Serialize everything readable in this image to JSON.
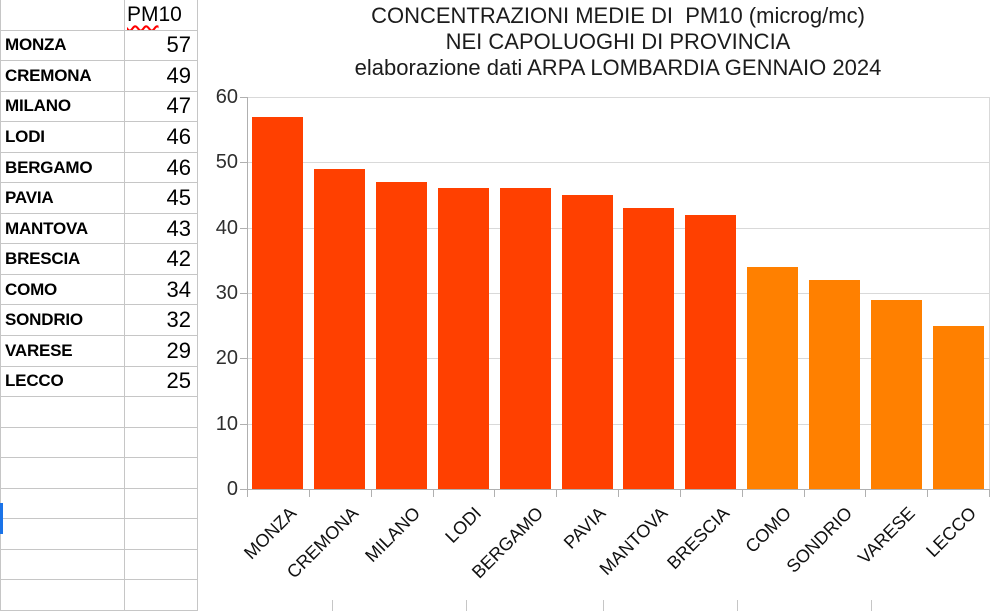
{
  "app": {
    "kind": "spreadsheet with embedded bar chart"
  },
  "table": {
    "header": {
      "full": "PM 10",
      "misspelled_part": "PM",
      "rest": " 10"
    },
    "rows": [
      {
        "name": "MONZA",
        "value": 57
      },
      {
        "name": "CREMONA",
        "value": 49
      },
      {
        "name": "MILANO",
        "value": 47
      },
      {
        "name": "LODI",
        "value": 46
      },
      {
        "name": "BERGAMO",
        "value": 46
      },
      {
        "name": "PAVIA",
        "value": 45
      },
      {
        "name": "MANTOVA",
        "value": 43
      },
      {
        "name": "BRESCIA",
        "value": 42
      },
      {
        "name": "COMO",
        "value": 34
      },
      {
        "name": "SONDRIO",
        "value": 32
      },
      {
        "name": "VARESE",
        "value": 29
      },
      {
        "name": "LECCO",
        "value": 25
      }
    ]
  },
  "chart_data": {
    "type": "bar",
    "title_lines": [
      "CONCENTRAZIONI MEDIE DI  PM10 (microg/mc)",
      "NEI CAPOLUOGHI DI PROVINCIA",
      "elaborazione dati ARPA LOMBARDIA GENNAIO 2024"
    ],
    "categories": [
      "MONZA",
      "CREMONA",
      "MILANO",
      "LODI",
      "BERGAMO",
      "PAVIA",
      "MANTOVA",
      "BRESCIA",
      "COMO",
      "SONDRIO",
      "VARESE",
      "LECCO"
    ],
    "series": [
      {
        "name": "PM 10",
        "values": [
          57,
          49,
          47,
          46,
          46,
          45,
          43,
          42,
          34,
          32,
          29,
          25
        ]
      }
    ],
    "values": [
      57,
      49,
      47,
      46,
      46,
      45,
      43,
      42,
      34,
      32,
      29,
      25
    ],
    "bar_colors": [
      "#ff4000",
      "#ff4000",
      "#ff4000",
      "#ff4000",
      "#ff4000",
      "#ff4000",
      "#ff4000",
      "#ff4000",
      "#ff8000",
      "#ff8000",
      "#ff8000",
      "#ff8000"
    ],
    "xlabel": "",
    "ylabel": "",
    "ylim": [
      0,
      60
    ],
    "yticks": [
      0,
      10,
      20,
      30,
      40,
      50,
      60
    ],
    "grid": true,
    "legend": "none",
    "x_label_rotation_deg": 45
  },
  "colors": {
    "bar_red": "#ff4000",
    "bar_orange": "#ff8000",
    "gridline": "#d9d9d9",
    "axis": "#b0b0b0",
    "sheet_border": "#c6c6c6",
    "selection_blue": "#1a73e8",
    "misspell_underline": "#ff0000"
  }
}
